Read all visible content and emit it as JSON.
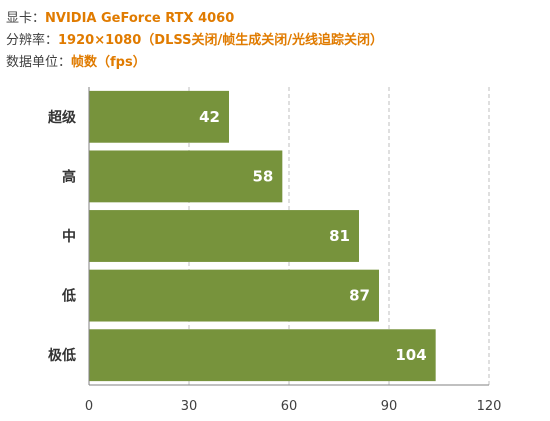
{
  "header": {
    "gpu_label": "显卡：",
    "gpu_value": "NVIDIA GeForce RTX 4060",
    "resolution_label": "分辨率：",
    "resolution_value": "1920×1080（DLSS关闭/帧生成关闭/光线追踪关闭）",
    "unit_label": "数据单位：",
    "unit_value": "帧数（fps）"
  },
  "colors": {
    "accent": "#e07b00",
    "bar": "#77933c",
    "axis": "#808080",
    "grid": "#bfbfbf"
  },
  "chart_data": {
    "type": "bar",
    "orientation": "horizontal",
    "categories": [
      "超级",
      "高",
      "中",
      "低",
      "极低"
    ],
    "values": [
      42,
      58,
      81,
      87,
      104
    ],
    "xlim": [
      0,
      120
    ],
    "xticks": [
      0,
      30,
      60,
      90,
      120
    ],
    "grid": "vertical dashed",
    "title": "",
    "xlabel": "",
    "ylabel": ""
  }
}
